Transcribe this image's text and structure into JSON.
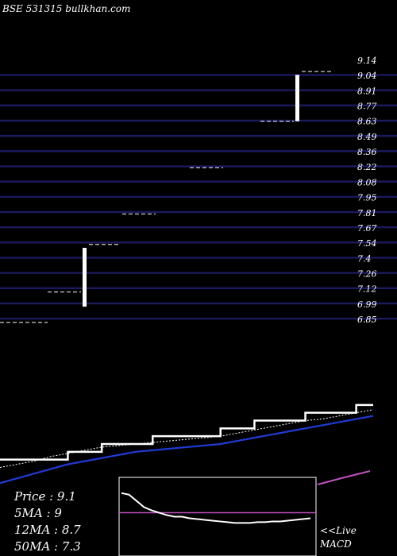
{
  "header": {
    "source": "BSE 531315 bullkhan.com"
  },
  "stats": {
    "price": "Price   : 9.1",
    "ma5": "5MA : 9",
    "ma12": "12MA : 8.7",
    "ma50": "50MA : 7.3"
  },
  "macd_label": {
    "line1": "<<Live",
    "line2": "MACD"
  },
  "colors": {
    "background": "#000000",
    "grid": "#1a1a5e",
    "price_line": "#ffffff",
    "ma_blue": "#1f3bd6",
    "macd_signal": "#c050c0"
  },
  "chart_data": {
    "type": "candlestick",
    "y_ticks": [
      "9.14",
      "9.04",
      "8.91",
      "8.77",
      "8.63",
      "8.49",
      "8.36",
      "8.22",
      "8.08",
      "7.95",
      "7.81",
      "7.67",
      "7.54",
      "7.4",
      "7.26",
      "7.12",
      "6.99",
      "6.85"
    ],
    "ylim": [
      6.85,
      9.14
    ],
    "candles": [
      {
        "prev": 6.85,
        "low": 6.85,
        "high": 6.85,
        "next": 6.85
      },
      {
        "prev": 7.12,
        "low": 6.99,
        "high": 7.51,
        "next": 7.54
      },
      {
        "prev": 7.81,
        "low": 7.81,
        "high": 7.81,
        "next": 7.81
      },
      {
        "prev": 8.22,
        "low": 8.22,
        "high": 8.22,
        "next": 8.22
      },
      {
        "prev": 8.63,
        "low": 8.63,
        "high": 9.04,
        "next": 9.07
      }
    ],
    "lower_panel": {
      "price": [
        8.7,
        8.7,
        8.7,
        8.7,
        8.75,
        8.75,
        8.8,
        8.8,
        8.8,
        8.85,
        8.85,
        8.85,
        8.85,
        8.9,
        8.9,
        8.95,
        8.95,
        8.95,
        9.0,
        9.0,
        9.0,
        9.05,
        9.05
      ],
      "ma_white": [
        8.65,
        8.67,
        8.69,
        8.72,
        8.74,
        8.76,
        8.78,
        8.79,
        8.8,
        8.81,
        8.82,
        8.83,
        8.84,
        8.85,
        8.87,
        8.89,
        8.91,
        8.93,
        8.95,
        8.96,
        8.98,
        9.0,
        9.02
      ],
      "ma_blue": [
        8.55,
        8.58,
        8.61,
        8.64,
        8.67,
        8.69,
        8.71,
        8.73,
        8.75,
        8.76,
        8.77,
        8.78,
        8.79,
        8.8,
        8.82,
        8.84,
        8.86,
        8.88,
        8.9,
        8.92,
        8.94,
        8.96,
        8.98
      ],
      "ylim": [
        8.5,
        9.1
      ]
    },
    "macd_panel": {
      "macd": [
        0.8,
        0.78,
        0.7,
        0.62,
        0.58,
        0.55,
        0.52,
        0.5,
        0.5,
        0.48,
        0.47,
        0.46,
        0.45,
        0.44,
        0.43,
        0.42,
        0.42,
        0.42,
        0.43,
        0.43,
        0.44,
        0.44,
        0.45,
        0.46,
        0.47,
        0.48
      ],
      "signal": 0.55,
      "ylim": [
        0,
        1
      ]
    }
  }
}
